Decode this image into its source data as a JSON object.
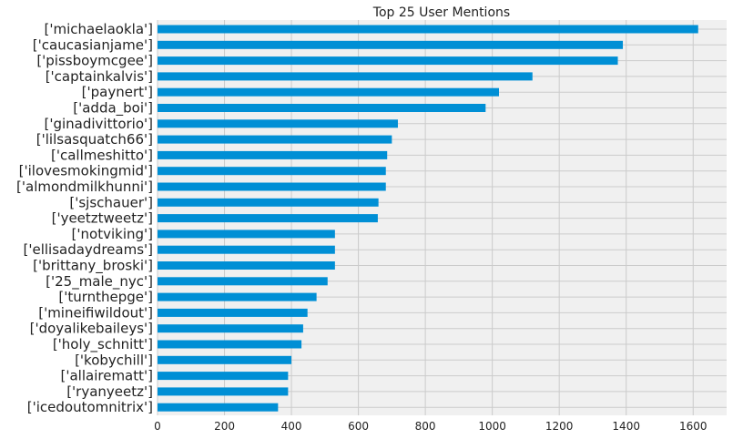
{
  "chart_data": {
    "type": "bar",
    "orientation": "horizontal",
    "title": "Top 25 User Mentions",
    "xlabel": "",
    "ylabel": "",
    "xlim": [
      0,
      1700
    ],
    "xticks": [
      0,
      200,
      400,
      600,
      800,
      1000,
      1200,
      1400,
      1600
    ],
    "grid": true,
    "bar_color": "#008fd5",
    "background_color": "#f0f0f0",
    "grid_color": "#cbcbcb",
    "categories": [
      "['michaelaokla']",
      "['caucasianjame']",
      "['pissboymcgee']",
      "['captainkalvis']",
      "['paynert']",
      "['adda_boi']",
      "['ginadivittorio']",
      "['lilsasquatch66']",
      "['callmeshitto']",
      "['ilovesmokingmid']",
      "['almondmilkhunni']",
      "['sjschauer']",
      "['yeetztweetz']",
      "['notviking']",
      "['ellisadaydreams']",
      "['brittany_broski']",
      "['25_male_nyc']",
      "['turnthepge']",
      "['mineifiwildout']",
      "['doyalikebaileys']",
      "['holy_schnitt']",
      "['kobychill']",
      "['allairematt']",
      "['ryanyeetz']",
      "['icedoutomnitrix']"
    ],
    "values": [
      1615,
      1390,
      1375,
      1120,
      1020,
      980,
      718,
      700,
      686,
      682,
      682,
      660,
      658,
      530,
      530,
      530,
      508,
      475,
      448,
      435,
      430,
      400,
      390,
      390,
      360
    ]
  }
}
